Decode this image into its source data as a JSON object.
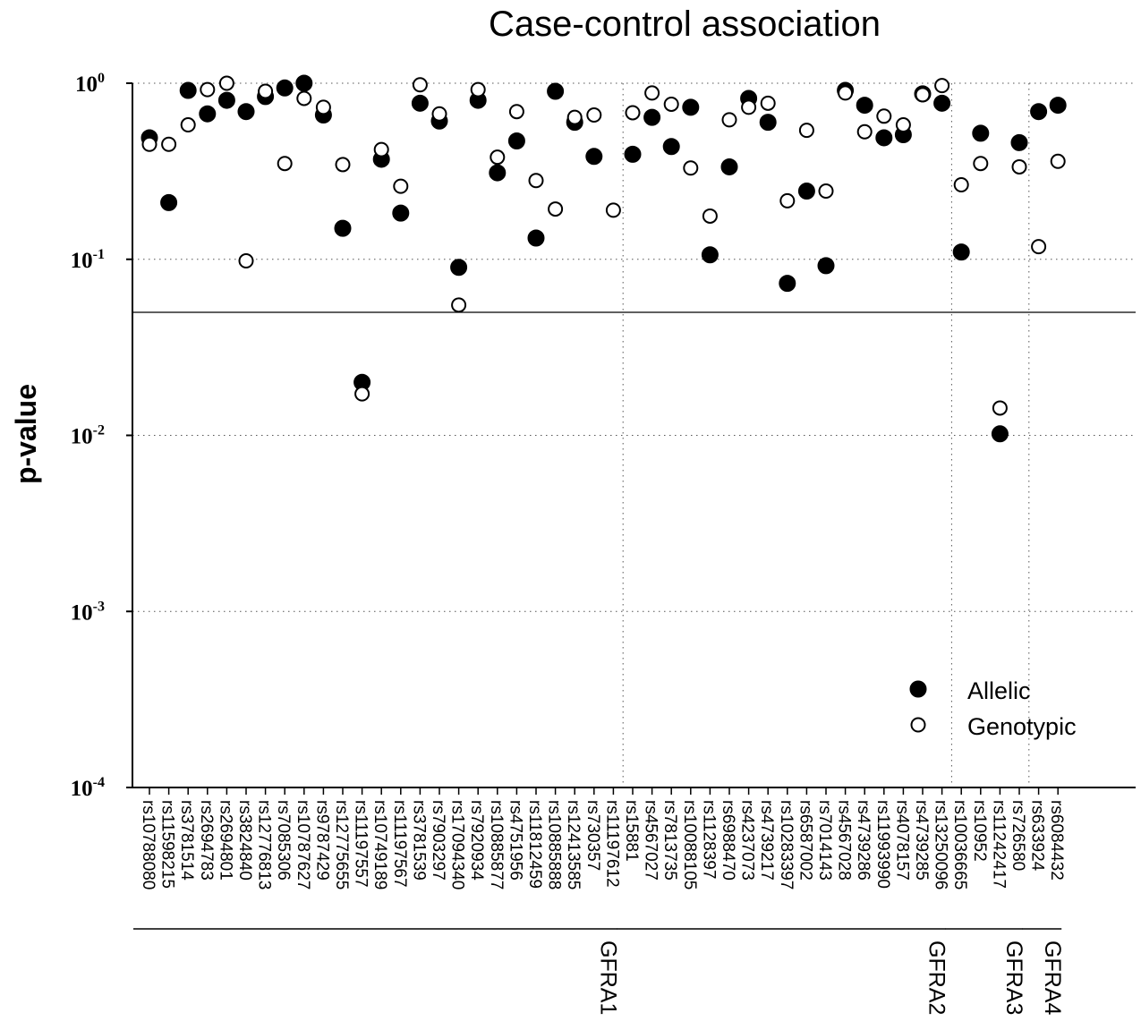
{
  "chart_data": {
    "type": "scatter",
    "title": "Case-control association",
    "xlabel": "",
    "ylabel": "p-value",
    "y_scale": "log",
    "ylim": [
      0.0001,
      1
    ],
    "y_ticks": [
      {
        "base": "10",
        "exp": "0"
      },
      {
        "base": "10",
        "exp": "-1"
      },
      {
        "base": "10",
        "exp": "-2"
      },
      {
        "base": "10",
        "exp": "-3"
      },
      {
        "base": "10",
        "exp": "-4"
      }
    ],
    "threshold": 0.05,
    "grid": true,
    "legend_position": "bottom-right",
    "categories": [
      "rs10788080",
      "rs11598215",
      "rs3781514",
      "rs2694783",
      "rs2694801",
      "rs3824840",
      "rs12776813",
      "rs7085306",
      "rs10787627",
      "rs9787429",
      "rs12775655",
      "rs11197557",
      "rs10749189",
      "rs11197567",
      "rs3781539",
      "rs7903297",
      "rs17094340",
      "rs7920934",
      "rs10885877",
      "rs4751956",
      "rs11812459",
      "rs10885888",
      "rs12413585",
      "rs730357",
      "rs11197612",
      "rs15881",
      "rs4567027",
      "rs7813735",
      "rs10088105",
      "rs1128397",
      "rs6988470",
      "rs4237073",
      "rs4739217",
      "rs10283397",
      "rs6587002",
      "rs7014143",
      "rs4567028",
      "rs4739286",
      "rs11993990",
      "rs4078157",
      "rs4739285",
      "rs13250096",
      "rs10036665",
      "rs10952",
      "rs11242417",
      "rs726580",
      "rs633924",
      "rs6084432"
    ],
    "genes": [
      {
        "name": "GFRA1",
        "start": 0,
        "end": 24
      },
      {
        "name": "GFRA2",
        "start": 25,
        "end": 41
      },
      {
        "name": "GFRA3",
        "start": 42,
        "end": 45
      },
      {
        "name": "GFRA4",
        "start": 46,
        "end": 47
      }
    ],
    "series": [
      {
        "name": "Allelic",
        "marker": "filled",
        "values": [
          0.49,
          0.21,
          0.91,
          0.67,
          0.8,
          0.69,
          0.84,
          0.94,
          1.0,
          0.66,
          0.15,
          0.02,
          0.37,
          0.183,
          0.77,
          0.61,
          0.09,
          0.8,
          0.31,
          0.47,
          0.132,
          0.9,
          0.6,
          0.384,
          null,
          0.395,
          0.64,
          0.437,
          0.73,
          0.106,
          0.335,
          0.82,
          0.6,
          0.073,
          0.244,
          0.092,
          0.91,
          0.75,
          0.49,
          0.51,
          0.87,
          0.77,
          0.11,
          0.52,
          0.0102,
          0.46,
          0.69,
          0.75
        ]
      },
      {
        "name": "Genotypic",
        "marker": "open",
        "values": [
          0.45,
          0.45,
          0.58,
          0.92,
          1.0,
          0.098,
          0.9,
          0.35,
          0.82,
          0.73,
          0.345,
          0.0172,
          0.42,
          0.26,
          0.98,
          0.67,
          0.055,
          0.92,
          0.38,
          0.69,
          0.28,
          0.193,
          0.64,
          0.66,
          0.19,
          0.68,
          0.88,
          0.76,
          0.33,
          0.176,
          0.62,
          0.73,
          0.77,
          0.215,
          0.54,
          0.244,
          0.88,
          0.53,
          0.65,
          0.58,
          0.86,
          0.97,
          0.265,
          0.35,
          0.0143,
          0.335,
          0.118,
          0.36
        ]
      }
    ]
  },
  "legend": {
    "allelic": "Allelic",
    "genotypic": "Genotypic"
  }
}
